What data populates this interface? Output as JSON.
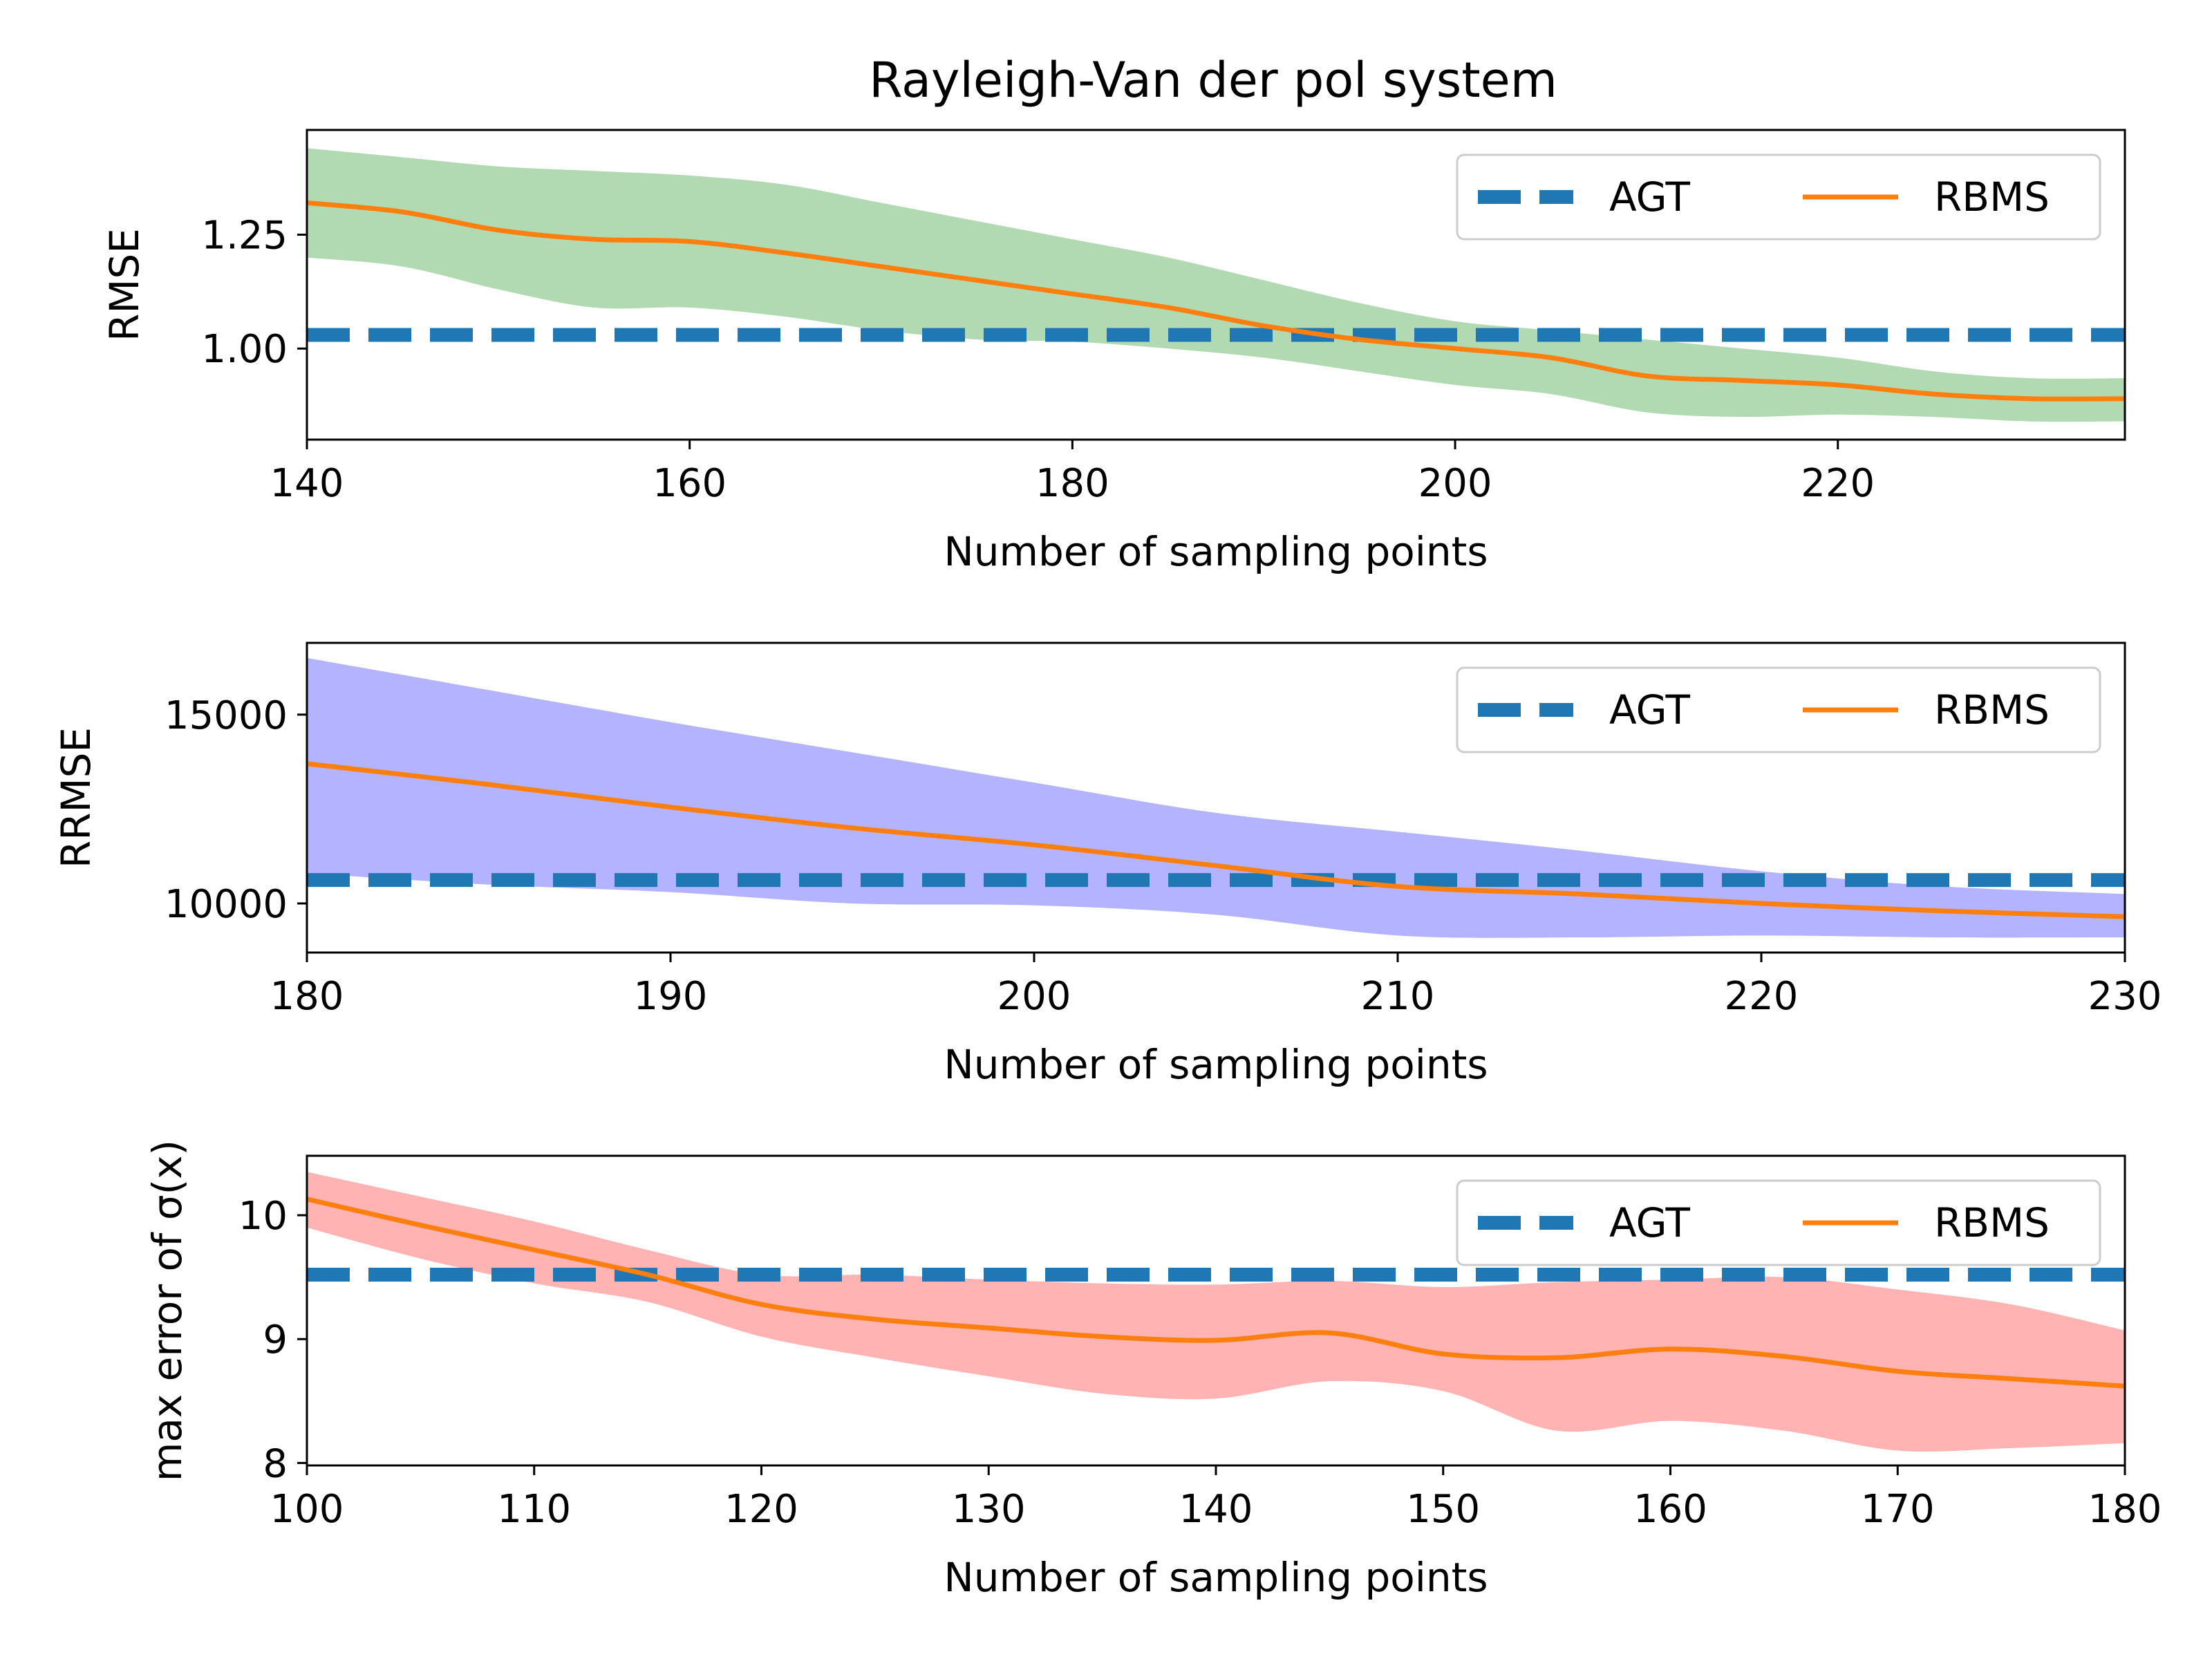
{
  "chart_data": {
    "type": "line",
    "title": "Rayleigh-Van der pol system",
    "legend_position": "top-right",
    "panels": [
      {
        "xlabel": "Number of sampling points",
        "ylabel": "RMSE",
        "xlim": [
          140,
          235
        ],
        "ylim": [
          0.8,
          1.48
        ],
        "xticks": [
          140,
          160,
          180,
          200,
          220
        ],
        "xtick_labels": [
          "140",
          "160",
          "180",
          "200",
          "220"
        ],
        "yticks": [
          1.0,
          1.25
        ],
        "ytick_labels": [
          "1.00",
          "1.25"
        ],
        "band_color": "#b2dab2",
        "series": [
          {
            "name": "AGT",
            "style": "dashed",
            "color": "#1f77b4",
            "x": [
              140,
              235
            ],
            "y": [
              1.03,
              1.03
            ]
          },
          {
            "name": "RBMS",
            "style": "solid",
            "color": "#ff7f0e",
            "x": [
              140,
              145,
              150,
              155,
              160,
              165,
              170,
              175,
              180,
              185,
              190,
              195,
              200,
              205,
              210,
              215,
              220,
              225,
              230,
              235
            ],
            "y": [
              1.32,
              1.3,
              1.26,
              1.24,
              1.235,
              1.21,
              1.18,
              1.15,
              1.12,
              1.09,
              1.05,
              1.02,
              1.0,
              0.98,
              0.94,
              0.93,
              0.92,
              0.9,
              0.89,
              0.89
            ]
          }
        ],
        "band": {
          "x": [
            140,
            145,
            150,
            155,
            160,
            165,
            170,
            175,
            180,
            185,
            190,
            195,
            200,
            205,
            210,
            215,
            220,
            225,
            230,
            235
          ],
          "lower": [
            1.2,
            1.18,
            1.13,
            1.09,
            1.09,
            1.07,
            1.04,
            1.02,
            1.015,
            1.0,
            0.98,
            0.95,
            0.92,
            0.9,
            0.86,
            0.85,
            0.855,
            0.85,
            0.84,
            0.84
          ],
          "upper": [
            1.44,
            1.42,
            1.4,
            1.39,
            1.38,
            1.36,
            1.32,
            1.28,
            1.24,
            1.2,
            1.15,
            1.1,
            1.06,
            1.04,
            1.02,
            1.0,
            0.98,
            0.95,
            0.935,
            0.935
          ]
        }
      },
      {
        "xlabel": "Number of sampling points",
        "ylabel": "RRMSE",
        "xlim": [
          180,
          230
        ],
        "ylim": [
          8700,
          16900
        ],
        "xticks": [
          180,
          190,
          200,
          210,
          220,
          230
        ],
        "xtick_labels": [
          "180",
          "190",
          "200",
          "210",
          "220",
          "230"
        ],
        "yticks": [
          10000,
          15000
        ],
        "ytick_labels": [
          "10000",
          "15000"
        ],
        "band_color": "#b3b3ff",
        "series": [
          {
            "name": "AGT",
            "style": "dashed",
            "color": "#1f77b4",
            "x": [
              180,
              230
            ],
            "y": [
              10620,
              10620
            ]
          },
          {
            "name": "RBMS",
            "style": "solid",
            "color": "#ff7f0e",
            "x": [
              180,
              185,
              190,
              195,
              200,
              205,
              210,
              215,
              220,
              225,
              230
            ],
            "y": [
              13700,
              13150,
              12550,
              12000,
              11550,
              11000,
              10450,
              10250,
              10000,
              9800,
              9650
            ]
          }
        ],
        "band": {
          "x": [
            180,
            185,
            190,
            195,
            200,
            205,
            210,
            215,
            220,
            225,
            230
          ],
          "lower": [
            10800,
            10500,
            10300,
            10000,
            9950,
            9700,
            9150,
            9100,
            9150,
            9100,
            9100
          ],
          "upper": [
            16500,
            15650,
            14800,
            14000,
            13200,
            12400,
            11900,
            11400,
            10850,
            10450,
            10250
          ]
        }
      },
      {
        "xlabel": "Number of sampling points",
        "ylabel": "max error of σ(x)",
        "xlim": [
          100,
          180
        ],
        "ylim": [
          7.98,
          10.48
        ],
        "xticks": [
          100,
          110,
          120,
          130,
          140,
          150,
          160,
          170,
          180
        ],
        "xtick_labels": [
          "100",
          "110",
          "120",
          "130",
          "140",
          "150",
          "160",
          "170",
          "180"
        ],
        "yticks": [
          8,
          9,
          10
        ],
        "ytick_labels": [
          "8",
          "9",
          "10"
        ],
        "band_color": "#ffb3b3",
        "series": [
          {
            "name": "AGT",
            "style": "dashed",
            "color": "#1f77b4",
            "x": [
              100,
              180
            ],
            "y": [
              9.52,
              9.52
            ]
          },
          {
            "name": "RBMS",
            "style": "solid",
            "color": "#ff7f0e",
            "x": [
              100,
              105,
              110,
              115,
              120,
              125,
              130,
              135,
              140,
              145,
              150,
              155,
              160,
              165,
              170,
              175,
              180
            ],
            "y": [
              10.13,
              9.92,
              9.72,
              9.52,
              9.28,
              9.16,
              9.09,
              9.02,
              8.99,
              9.05,
              8.88,
              8.85,
              8.92,
              8.86,
              8.74,
              8.68,
              8.62
            ]
          }
        ],
        "band": {
          "x": [
            100,
            105,
            110,
            115,
            120,
            125,
            130,
            135,
            140,
            145,
            150,
            155,
            160,
            165,
            170,
            175,
            180
          ],
          "lower": [
            9.9,
            9.65,
            9.45,
            9.3,
            9.02,
            8.85,
            8.7,
            8.56,
            8.52,
            8.66,
            8.58,
            8.26,
            8.34,
            8.26,
            8.1,
            8.12,
            8.16
          ],
          "upper": [
            10.35,
            10.15,
            9.95,
            9.72,
            9.52,
            9.52,
            9.48,
            9.45,
            9.44,
            9.47,
            9.42,
            9.46,
            9.48,
            9.5,
            9.4,
            9.28,
            9.07
          ]
        }
      }
    ]
  }
}
